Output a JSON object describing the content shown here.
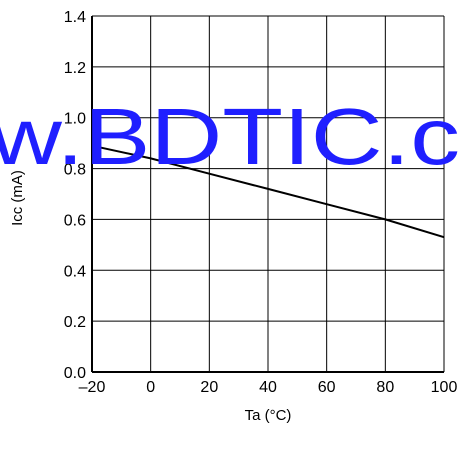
{
  "chart_data": {
    "type": "line",
    "title": "",
    "xlabel": "Ta (°C)",
    "ylabel": "Icc (mA)",
    "xlim": [
      -20,
      100
    ],
    "ylim": [
      0.0,
      1.4
    ],
    "x_ticks": [
      "–20",
      "0",
      "20",
      "40",
      "60",
      "80",
      "100"
    ],
    "y_ticks": [
      "0.0",
      "0.2",
      "0.4",
      "0.6",
      "0.8",
      "1.0",
      "1.2",
      "1.4"
    ],
    "grid": true,
    "series": [
      {
        "x": [
          -20,
          0,
          20,
          40,
          60,
          80,
          100
        ],
        "y": [
          0.89,
          0.84,
          0.78,
          0.72,
          0.66,
          0.6,
          0.53
        ]
      }
    ]
  },
  "watermark": {
    "text": "w.BDTIC.c",
    "color": "#1f1fff"
  },
  "colors": {
    "line": "#000000",
    "grid": "#000000"
  }
}
